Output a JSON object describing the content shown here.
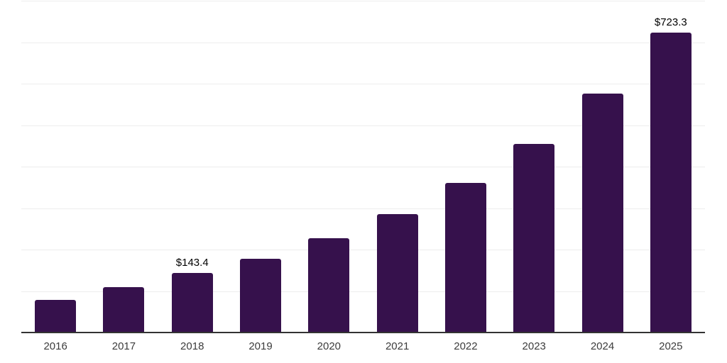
{
  "chart_data": {
    "type": "bar",
    "categories": [
      "2016",
      "2017",
      "2018",
      "2019",
      "2020",
      "2021",
      "2022",
      "2023",
      "2024",
      "2025"
    ],
    "values": [
      79.0,
      109.0,
      143.4,
      178.6,
      226.7,
      285.1,
      360.6,
      455.1,
      576.9,
      723.3
    ],
    "data_labels": [
      "",
      "",
      "$143.4",
      "",
      "",
      "",
      "",
      "",
      "",
      "$723.3"
    ],
    "title": "",
    "xlabel": "",
    "ylabel": "",
    "ylim": [
      0,
      800
    ],
    "gridline_interval": 100,
    "grid": "horizontal-only",
    "legend": "none",
    "value_prefix": "$"
  },
  "colors": {
    "bar_fill": "#36114C",
    "gridline": "#ededed",
    "axis_line": "#333333",
    "x_label_text": "#3c3c3c",
    "data_label_text": "#000000",
    "background": "#ffffff"
  }
}
